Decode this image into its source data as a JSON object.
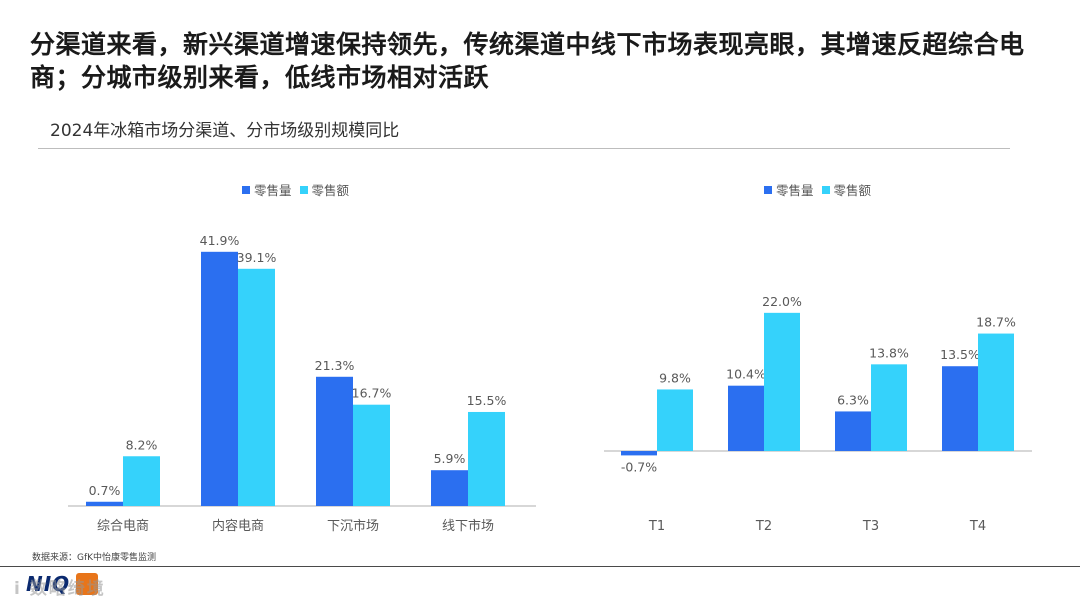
{
  "page": {
    "headline": "分渠道来看，新兴渠道增速保持领先，传统渠道中线下市场表现亮眼，其增速反超综合电商；分城市级别来看，低线市场相对活跃",
    "subtitle": "2024年冰箱市场分渠道、分市场级别规模同比",
    "source": "数据来源：GfK中怡康零售监测",
    "logo_text": "NIQ",
    "watermark": "i 数略绮境"
  },
  "colors": {
    "volume": "#2b6ff0",
    "value": "#35d2fb",
    "axis": "#bfbfbf",
    "label": "#595959"
  },
  "legend": {
    "volume": "零售量",
    "value": "零售额"
  },
  "chart_data": [
    {
      "type": "bar",
      "title": "",
      "categories": [
        "综合电商",
        "内容电商",
        "下沉市场",
        "线下市场"
      ],
      "series": [
        {
          "name": "零售量",
          "values": [
            0.7,
            41.9,
            21.3,
            5.9
          ]
        },
        {
          "name": "零售额",
          "values": [
            8.2,
            39.1,
            16.7,
            15.5
          ]
        }
      ],
      "unit": "%",
      "ylim": [
        0,
        45
      ],
      "grid": false,
      "legend_position": "top-center"
    },
    {
      "type": "bar",
      "title": "",
      "categories": [
        "T1",
        "T2",
        "T3",
        "T4"
      ],
      "series": [
        {
          "name": "零售量",
          "values": [
            -0.7,
            10.4,
            6.3,
            13.5
          ]
        },
        {
          "name": "零售额",
          "values": [
            9.8,
            22.0,
            13.8,
            18.7
          ]
        }
      ],
      "unit": "%",
      "ylim": [
        -3,
        25
      ],
      "grid": false,
      "legend_position": "top-center"
    }
  ]
}
